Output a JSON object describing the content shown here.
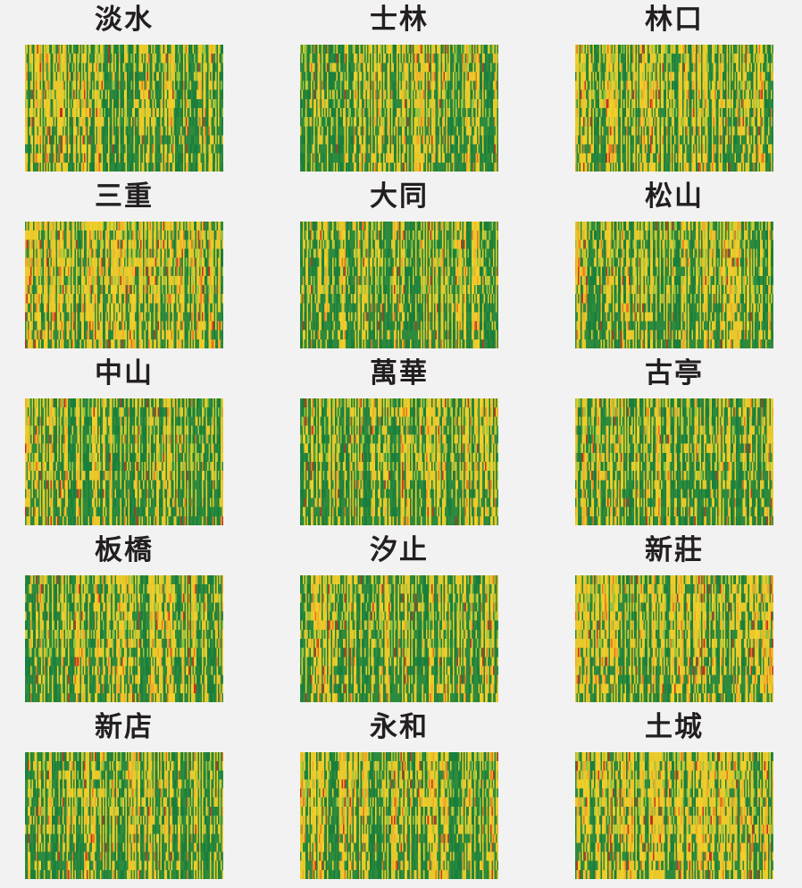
{
  "colors": {
    "background": "#f2f2f2",
    "scale": [
      "#1a7f3c",
      "#2e8b3e",
      "#9bc23c",
      "#e8c82b",
      "#f2cf2a",
      "#f0a92a",
      "#e8751f",
      "#c8321f"
    ],
    "title": "#231f20"
  },
  "chart_data": {
    "type": "heatmap",
    "panels": [
      {
        "title": "淡水",
        "green_bias": 0.45
      },
      {
        "title": "士林",
        "green_bias": 0.55
      },
      {
        "title": "林口",
        "green_bias": 0.4
      },
      {
        "title": "三重",
        "green_bias": 0.3
      },
      {
        "title": "大同",
        "green_bias": 0.6
      },
      {
        "title": "松山",
        "green_bias": 0.5
      },
      {
        "title": "中山",
        "green_bias": 0.55
      },
      {
        "title": "萬華",
        "green_bias": 0.5
      },
      {
        "title": "古亭",
        "green_bias": 0.55
      },
      {
        "title": "板橋",
        "green_bias": 0.5
      },
      {
        "title": "汐止",
        "green_bias": 0.55
      },
      {
        "title": "新莊",
        "green_bias": 0.4
      },
      {
        "title": "新店",
        "green_bias": 0.5
      },
      {
        "title": "永和",
        "green_bias": 0.45
      },
      {
        "title": "土城",
        "green_bias": 0.35
      }
    ]
  }
}
